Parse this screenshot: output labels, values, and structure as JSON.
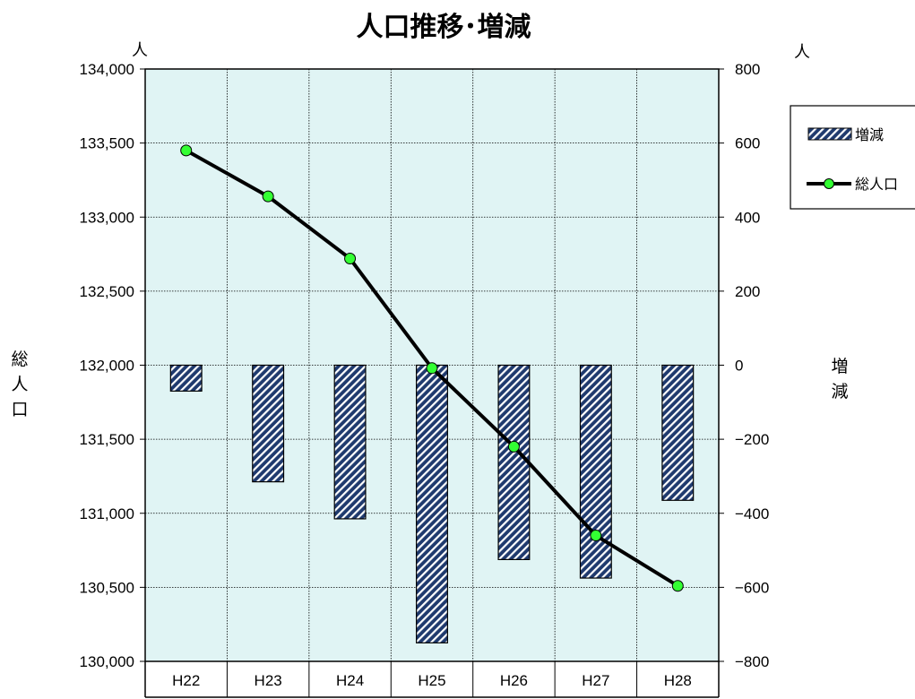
{
  "chart_data": {
    "type": "bar",
    "title": "人口推移･増減",
    "categories": [
      "H22",
      "H23",
      "H24",
      "H25",
      "H26",
      "H27",
      "H28"
    ],
    "series": [
      {
        "name": "増減",
        "type": "bar",
        "axis": "right",
        "values": [
          -70,
          -315,
          -415,
          -750,
          -525,
          -575,
          -365
        ]
      },
      {
        "name": "総人口",
        "type": "line",
        "axis": "left",
        "values": [
          133450,
          133140,
          132720,
          131980,
          131450,
          130850,
          130510
        ]
      }
    ],
    "left_axis": {
      "label": "総人口",
      "unit": "人",
      "ylim": [
        130000,
        134000
      ],
      "ticks": [
        "134,000",
        "133,500",
        "133,000",
        "132,500",
        "132,000",
        "131,500",
        "131,000",
        "130,500",
        "130,000"
      ]
    },
    "right_axis": {
      "label": "増減",
      "unit": "人",
      "ylim": [
        -800,
        800
      ],
      "ticks": [
        "800",
        "600",
        "400",
        "200",
        "0",
        "−200",
        "−400",
        "−600",
        "−800"
      ]
    },
    "grid": true,
    "legend": "right",
    "colors": {
      "plot_background": "#e0f4f4",
      "bar_fill": "#1f3a6e",
      "bar_hatch": "#ffffff",
      "line": "#000000",
      "marker": "#33ff33"
    }
  }
}
